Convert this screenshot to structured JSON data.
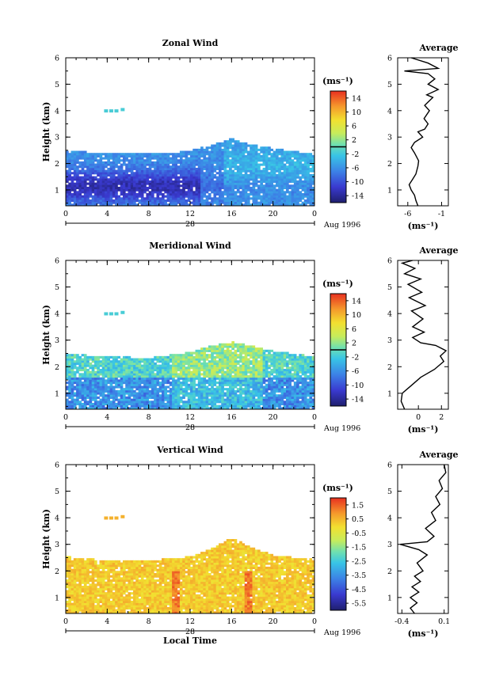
{
  "figure": {
    "date_label": "Aug 1996",
    "day_label": "28",
    "x_label": "Local Time",
    "y_label": "Height (km)",
    "unit_label": "(ms⁻¹)",
    "avg_title": "Average"
  },
  "chart_data": [
    {
      "type": "heatmap",
      "title": "Zonal Wind",
      "xlabel": "",
      "ylabel": "Height (km)",
      "x_ticks": [
        "0",
        "4",
        "8",
        "12",
        "16",
        "20",
        "0"
      ],
      "xlim": [
        0,
        24
      ],
      "y_ticks": [
        "1",
        "2",
        "3",
        "4",
        "5",
        "6"
      ],
      "ylim": [
        0.4,
        6.0
      ],
      "colorbar": {
        "ticks": [
          "14",
          "10",
          "6",
          "2",
          "-2",
          "-6",
          "-10",
          "-14"
        ],
        "range": [
          -16,
          16
        ],
        "marked_level": 0,
        "label": "(ms⁻¹)"
      },
      "grid": false,
      "data_top_profile": [
        {
          "t": 0,
          "h": 2.45
        },
        {
          "t": 2,
          "h": 2.4
        },
        {
          "t": 6,
          "h": 2.4
        },
        {
          "t": 10,
          "h": 2.35
        },
        {
          "t": 12,
          "h": 2.45
        },
        {
          "t": 14,
          "h": 2.65
        },
        {
          "t": 16,
          "h": 2.9
        },
        {
          "t": 17,
          "h": 2.75
        },
        {
          "t": 20,
          "h": 2.55
        },
        {
          "t": 24,
          "h": 2.3
        }
      ],
      "profile": {
        "title": "Average",
        "x_ticks": [
          "-6",
          "-1"
        ],
        "xlim": [
          -7.5,
          0
        ],
        "xlabel": "(ms⁻¹)",
        "points": [
          [
            -4.5,
            0.4
          ],
          [
            -4.8,
            0.6
          ],
          [
            -5.0,
            0.8
          ],
          [
            -5.5,
            1.0
          ],
          [
            -5.8,
            1.2
          ],
          [
            -5.3,
            1.4
          ],
          [
            -4.8,
            1.6
          ],
          [
            -4.5,
            1.9
          ],
          [
            -4.4,
            2.1
          ],
          [
            -5.0,
            2.4
          ],
          [
            -5.5,
            2.6
          ],
          [
            -5.0,
            2.8
          ],
          [
            -3.8,
            3.0
          ],
          [
            -4.5,
            3.2
          ],
          [
            -3.5,
            3.3
          ],
          [
            -3.0,
            3.5
          ],
          [
            -3.6,
            3.7
          ],
          [
            -2.8,
            4.0
          ],
          [
            -3.5,
            4.2
          ],
          [
            -2.3,
            4.5
          ],
          [
            -3.2,
            4.6
          ],
          [
            -1.5,
            4.8
          ],
          [
            -3.0,
            5.0
          ],
          [
            -2.0,
            5.2
          ],
          [
            -3.0,
            5.4
          ],
          [
            -6.5,
            5.5
          ],
          [
            -1.5,
            5.6
          ],
          [
            -3.0,
            5.8
          ],
          [
            -5.5,
            6.0
          ]
        ]
      }
    },
    {
      "type": "heatmap",
      "title": "Meridional Wind",
      "xlabel": "",
      "ylabel": "Height (km)",
      "x_ticks": [
        "0",
        "4",
        "8",
        "12",
        "16",
        "20",
        "0"
      ],
      "xlim": [
        0,
        24
      ],
      "y_ticks": [
        "1",
        "2",
        "3",
        "4",
        "5",
        "6"
      ],
      "ylim": [
        0.4,
        6.0
      ],
      "colorbar": {
        "ticks": [
          "14",
          "10",
          "6",
          "2",
          "-2",
          "-6",
          "-10",
          "-14"
        ],
        "range": [
          -16,
          16
        ],
        "marked_level": 0,
        "label": "(ms⁻¹)"
      },
      "grid": false,
      "data_top_profile": [
        {
          "t": 0,
          "h": 2.45
        },
        {
          "t": 4,
          "h": 2.35
        },
        {
          "t": 8,
          "h": 2.3
        },
        {
          "t": 12,
          "h": 2.5
        },
        {
          "t": 14,
          "h": 2.75
        },
        {
          "t": 16,
          "h": 2.9
        },
        {
          "t": 18,
          "h": 2.75
        },
        {
          "t": 20,
          "h": 2.55
        },
        {
          "t": 24,
          "h": 2.35
        }
      ],
      "profile": {
        "title": "Average",
        "x_ticks": [
          "0",
          "2"
        ],
        "xlim": [
          -1.8,
          2.6
        ],
        "xlabel": "(ms⁻¹)",
        "points": [
          [
            -1.2,
            0.4
          ],
          [
            -1.5,
            0.7
          ],
          [
            -1.4,
            1.0
          ],
          [
            -0.6,
            1.3
          ],
          [
            0.2,
            1.6
          ],
          [
            1.4,
            1.9
          ],
          [
            2.2,
            2.2
          ],
          [
            1.9,
            2.4
          ],
          [
            2.4,
            2.6
          ],
          [
            1.5,
            2.8
          ],
          [
            0.2,
            2.9
          ],
          [
            -0.5,
            3.1
          ],
          [
            0.5,
            3.3
          ],
          [
            -0.5,
            3.5
          ],
          [
            0.4,
            3.8
          ],
          [
            -0.6,
            4.1
          ],
          [
            0.6,
            4.3
          ],
          [
            -0.8,
            4.6
          ],
          [
            0.3,
            4.8
          ],
          [
            -0.9,
            5.1
          ],
          [
            0.2,
            5.3
          ],
          [
            -1.2,
            5.5
          ],
          [
            -0.3,
            5.7
          ],
          [
            -1.4,
            5.9
          ],
          [
            -0.5,
            6.0
          ]
        ]
      }
    },
    {
      "type": "heatmap",
      "title": "Vertical Wind",
      "xlabel": "Local Time",
      "ylabel": "Height (km)",
      "x_ticks": [
        "0",
        "4",
        "8",
        "12",
        "16",
        "20",
        "0"
      ],
      "xlim": [
        0,
        24
      ],
      "y_ticks": [
        "1",
        "2",
        "3",
        "4",
        "5",
        "6"
      ],
      "ylim": [
        0.4,
        6.0
      ],
      "colorbar": {
        "ticks": [
          "1.5",
          "0.5",
          "-0.5",
          "-1.5",
          "-2.5",
          "-3.5",
          "-4.5",
          "-5.5"
        ],
        "range": [
          -6.0,
          2.0
        ]
      },
      "grid": false,
      "data_top_profile": [
        {
          "t": 0,
          "h": 2.5
        },
        {
          "t": 4,
          "h": 2.35
        },
        {
          "t": 8,
          "h": 2.35
        },
        {
          "t": 12,
          "h": 2.5
        },
        {
          "t": 14,
          "h": 2.8
        },
        {
          "t": 16,
          "h": 3.2
        },
        {
          "t": 18,
          "h": 2.85
        },
        {
          "t": 20,
          "h": 2.55
        },
        {
          "t": 24,
          "h": 2.4
        }
      ],
      "profile": {
        "title": "Average",
        "x_ticks": [
          "-0.4",
          "0.1"
        ],
        "xlim": [
          -0.45,
          0.15
        ],
        "xlabel": "(ms⁻¹)",
        "points": [
          [
            -0.25,
            0.4
          ],
          [
            -0.3,
            0.6
          ],
          [
            -0.22,
            0.8
          ],
          [
            -0.3,
            1.0
          ],
          [
            -0.2,
            1.2
          ],
          [
            -0.28,
            1.4
          ],
          [
            -0.18,
            1.6
          ],
          [
            -0.25,
            1.8
          ],
          [
            -0.15,
            2.0
          ],
          [
            -0.22,
            2.3
          ],
          [
            -0.1,
            2.6
          ],
          [
            -0.2,
            2.8
          ],
          [
            -0.42,
            3.0
          ],
          [
            -0.1,
            3.1
          ],
          [
            -0.02,
            3.3
          ],
          [
            -0.12,
            3.6
          ],
          [
            0.0,
            3.9
          ],
          [
            -0.05,
            4.2
          ],
          [
            0.05,
            4.5
          ],
          [
            0.0,
            4.8
          ],
          [
            0.08,
            5.1
          ],
          [
            0.04,
            5.4
          ],
          [
            0.12,
            5.7
          ],
          [
            0.1,
            6.0
          ]
        ]
      }
    }
  ]
}
